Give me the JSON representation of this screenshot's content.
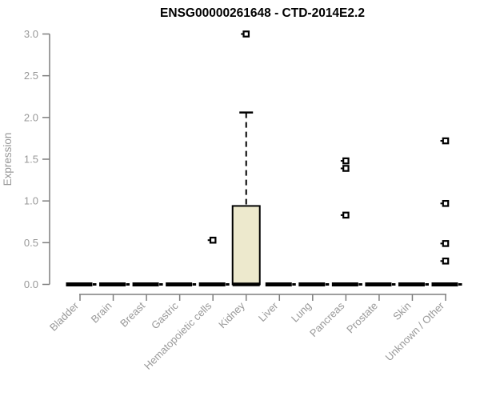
{
  "chart_data": {
    "type": "box",
    "title": "ENSG00000261648 - CTD-2014E2.2",
    "xlabel": "",
    "ylabel": "Expression",
    "ylim": [
      0,
      3.0
    ],
    "yticks": [
      "0.0",
      "0.5",
      "1.0",
      "1.5",
      "2.0",
      "2.5",
      "3.0"
    ],
    "grid": false,
    "legend": "none",
    "categories": [
      "Bladder",
      "Brain",
      "Breast",
      "Gastric",
      "Hematopoietic cells",
      "Kidney",
      "Liver",
      "Lung",
      "Pancreas",
      "Prostate",
      "Skin",
      "Unknown / Other"
    ],
    "series": [
      {
        "category": "Bladder",
        "whisker_low": 0,
        "q1": 0,
        "median": 0,
        "q3": 0,
        "whisker_high": 0,
        "outliers": []
      },
      {
        "category": "Brain",
        "whisker_low": 0,
        "q1": 0,
        "median": 0,
        "q3": 0,
        "whisker_high": 0,
        "outliers": []
      },
      {
        "category": "Breast",
        "whisker_low": 0,
        "q1": 0,
        "median": 0,
        "q3": 0,
        "whisker_high": 0,
        "outliers": []
      },
      {
        "category": "Gastric",
        "whisker_low": 0,
        "q1": 0,
        "median": 0,
        "q3": 0,
        "whisker_high": 0,
        "outliers": []
      },
      {
        "category": "Hematopoietic cells",
        "whisker_low": 0,
        "q1": 0,
        "median": 0,
        "q3": 0,
        "whisker_high": 0,
        "outliers": [
          0.53
        ]
      },
      {
        "category": "Kidney",
        "whisker_low": 0,
        "q1": 0,
        "median": 0,
        "q3": 0.94,
        "whisker_high": 2.06,
        "outliers": [
          3.0
        ]
      },
      {
        "category": "Liver",
        "whisker_low": 0,
        "q1": 0,
        "median": 0,
        "q3": 0,
        "whisker_high": 0,
        "outliers": []
      },
      {
        "category": "Lung",
        "whisker_low": 0,
        "q1": 0,
        "median": 0,
        "q3": 0,
        "whisker_high": 0,
        "outliers": []
      },
      {
        "category": "Pancreas",
        "whisker_low": 0,
        "q1": 0,
        "median": 0,
        "q3": 0,
        "whisker_high": 0,
        "outliers": [
          1.48,
          1.39,
          0.83
        ]
      },
      {
        "category": "Prostate",
        "whisker_low": 0,
        "q1": 0,
        "median": 0,
        "q3": 0,
        "whisker_high": 0,
        "outliers": []
      },
      {
        "category": "Skin",
        "whisker_low": 0,
        "q1": 0,
        "median": 0,
        "q3": 0,
        "whisker_high": 0,
        "outliers": []
      },
      {
        "category": "Unknown / Other",
        "whisker_low": 0,
        "q1": 0,
        "median": 0,
        "q3": 0,
        "whisker_high": 0,
        "outliers": [
          1.72,
          0.97,
          0.49,
          0.28
        ]
      }
    ],
    "colors": {
      "box_fill": "#EDE9CD",
      "box_stroke": "#000000",
      "outlier_fill": "#ffffff",
      "outlier_stroke": "#000000",
      "axis_line": "#7f7f7f",
      "tick_text": "#989898",
      "title_text": "#000000"
    }
  }
}
